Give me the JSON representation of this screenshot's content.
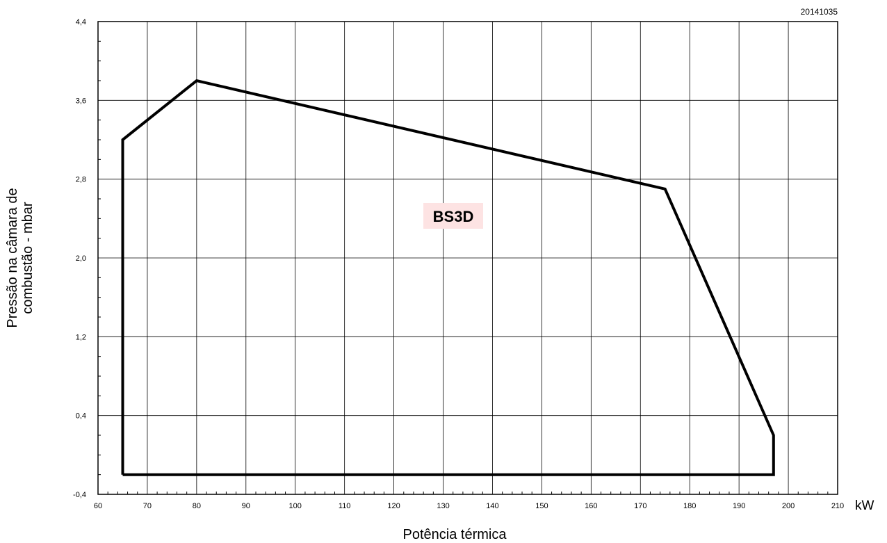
{
  "chart_data": {
    "type": "area",
    "code": "20141035",
    "xlabel": "Potência térmica",
    "x_unit": "kW",
    "ylabel_lines": [
      "Pressão na câmara de",
      "combustão - mbar"
    ],
    "xlim": [
      60,
      210
    ],
    "ylim": [
      -0.4,
      4.4
    ],
    "x_ticks": [
      60,
      70,
      80,
      90,
      100,
      110,
      120,
      130,
      140,
      150,
      160,
      170,
      180,
      190,
      200,
      210
    ],
    "x_tick_labels": [
      "60",
      "70",
      "80",
      "90",
      "100",
      "110",
      "120",
      "130",
      "140",
      "150",
      "160",
      "170",
      "180",
      "190",
      "200",
      "210"
    ],
    "y_ticks": [
      -0.4,
      0.4,
      1.2,
      2.0,
      2.8,
      3.6,
      4.4
    ],
    "y_tick_labels": [
      "-0,4",
      "0,4",
      "1,2",
      "2,0",
      "2,8",
      "3,6",
      "4,4"
    ],
    "grid": true,
    "series": [
      {
        "name": "BS3D",
        "label_background": "#fde3e3",
        "x": [
          65,
          65,
          80,
          175,
          197,
          197,
          65
        ],
        "y": [
          -0.2,
          3.2,
          3.8,
          2.7,
          0.2,
          -0.2,
          -0.2
        ]
      }
    ],
    "colors": {
      "line": "#000000",
      "grid": "#000000",
      "label_bg": "#fde3e3"
    }
  }
}
